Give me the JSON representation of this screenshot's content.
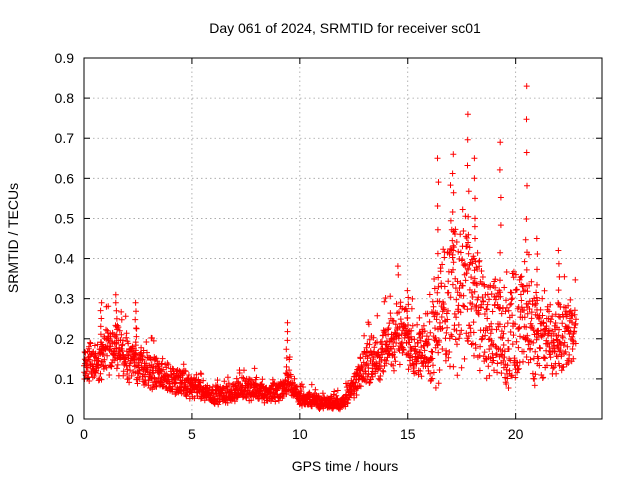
{
  "chart_data": {
    "type": "scatter",
    "title": "Day 061 of 2024, SRMTID for receiver sc01",
    "xlabel": "GPS time / hours",
    "ylabel": "SRMTID / TECUs",
    "xlim": [
      0,
      24
    ],
    "ylim": [
      0,
      0.9
    ],
    "xticks": [
      0,
      5,
      10,
      15,
      20
    ],
    "yticks": [
      0,
      0.1,
      0.2,
      0.3,
      0.4,
      0.5,
      0.6,
      0.7,
      0.8,
      0.9
    ],
    "marker": "+",
    "color": "#ff0000",
    "grid": true,
    "series_trend": {
      "x": [
        0,
        0.5,
        1,
        1.5,
        2,
        2.5,
        3,
        3.5,
        4,
        4.5,
        5,
        5.5,
        6,
        6.5,
        7,
        7.5,
        8,
        8.5,
        9,
        9.5,
        10,
        10.5,
        11,
        11.5,
        12,
        12.5,
        13,
        13.5,
        14,
        14.5,
        15,
        15.5,
        16,
        16.5,
        17,
        17.5,
        18,
        18.5,
        19,
        19.5,
        20,
        20.5,
        21,
        21.5,
        22,
        22.5,
        22.8
      ],
      "y": [
        0.15,
        0.14,
        0.16,
        0.17,
        0.15,
        0.14,
        0.12,
        0.11,
        0.1,
        0.09,
        0.08,
        0.07,
        0.06,
        0.06,
        0.07,
        0.08,
        0.07,
        0.06,
        0.07,
        0.09,
        0.05,
        0.05,
        0.04,
        0.04,
        0.04,
        0.08,
        0.13,
        0.15,
        0.17,
        0.22,
        0.2,
        0.17,
        0.17,
        0.25,
        0.33,
        0.3,
        0.32,
        0.22,
        0.22,
        0.2,
        0.24,
        0.25,
        0.18,
        0.2,
        0.19,
        0.21,
        0.22
      ]
    },
    "peaks": [
      {
        "x": 0.8,
        "y": 0.29
      },
      {
        "x": 1.5,
        "y": 0.31
      },
      {
        "x": 2.4,
        "y": 0.29
      },
      {
        "x": 9.4,
        "y": 0.24
      },
      {
        "x": 15.0,
        "y": 0.32
      },
      {
        "x": 16.4,
        "y": 0.65
      },
      {
        "x": 17.1,
        "y": 0.66
      },
      {
        "x": 17.8,
        "y": 0.76
      },
      {
        "x": 18.1,
        "y": 0.65
      },
      {
        "x": 19.3,
        "y": 0.69
      },
      {
        "x": 20.5,
        "y": 0.83
      },
      {
        "x": 21.0,
        "y": 0.45
      },
      {
        "x": 22.0,
        "y": 0.42
      }
    ]
  }
}
